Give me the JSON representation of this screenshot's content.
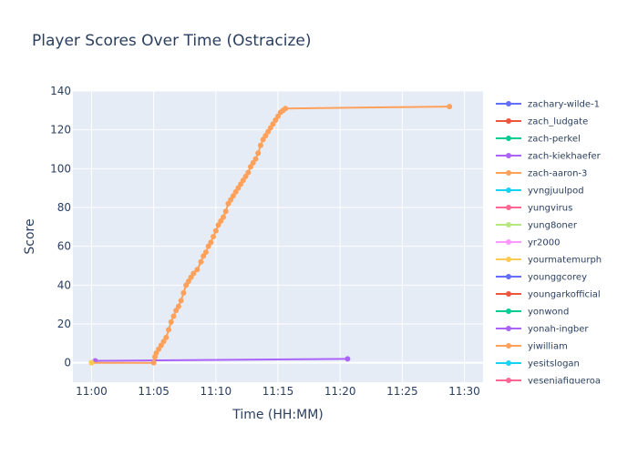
{
  "chart_data": {
    "type": "line",
    "title": "Player Scores Over Time (Ostracize)",
    "xlabel": "Time (HH:MM)",
    "ylabel": "Score",
    "x_unit": "minutes after 11:00",
    "xlim": [
      -1.5,
      31.5
    ],
    "ylim": [
      -10,
      140
    ],
    "x_ticks": [
      {
        "value": 0,
        "label": "11:00"
      },
      {
        "value": 5,
        "label": "11:05"
      },
      {
        "value": 10,
        "label": "11:10"
      },
      {
        "value": 15,
        "label": "11:15"
      },
      {
        "value": 20,
        "label": "11:20"
      },
      {
        "value": 25,
        "label": "11:25"
      },
      {
        "value": 30,
        "label": "11:30"
      }
    ],
    "y_ticks": [
      0,
      20,
      40,
      60,
      80,
      100,
      120,
      140
    ],
    "grid": true,
    "legend_position": "right",
    "series": [
      {
        "name": "zachary-wilde-1",
        "color": "#636efa",
        "x": [],
        "y": []
      },
      {
        "name": "zach_ludgate",
        "color": "#EF553B",
        "x": [],
        "y": []
      },
      {
        "name": "zach-perkel",
        "color": "#00cc96",
        "x": [],
        "y": []
      },
      {
        "name": "zach-kiekhaefer",
        "color": "#ab63fa",
        "x": [
          0.3,
          20.6
        ],
        "y": [
          1,
          2
        ]
      },
      {
        "name": "zach-aaron-3",
        "color": "#FFA15A",
        "x": [
          0.0,
          5.0,
          5.1,
          5.2,
          5.4,
          5.6,
          5.8,
          6.0,
          6.2,
          6.4,
          6.6,
          6.8,
          7.0,
          7.2,
          7.4,
          7.6,
          7.8,
          8.0,
          8.2,
          8.5,
          8.8,
          9.0,
          9.2,
          9.4,
          9.6,
          9.8,
          10.0,
          10.2,
          10.4,
          10.6,
          10.8,
          11.0,
          11.2,
          11.4,
          11.6,
          11.8,
          12.0,
          12.2,
          12.4,
          12.6,
          12.8,
          13.0,
          13.2,
          13.4,
          13.6,
          13.8,
          14.0,
          14.2,
          14.4,
          14.6,
          14.8,
          15.0,
          15.2,
          15.4,
          15.6,
          28.8
        ],
        "y": [
          0,
          0,
          3,
          5,
          7,
          9,
          11,
          13,
          17,
          21,
          24,
          27,
          29,
          32,
          36,
          40,
          42,
          44,
          46,
          48,
          52,
          55,
          57,
          60,
          62,
          65,
          68,
          71,
          73,
          75,
          78,
          82,
          84,
          86,
          88,
          90,
          92,
          94,
          96,
          98,
          101,
          103,
          105,
          108,
          112,
          115,
          117,
          119,
          121,
          123,
          125,
          127,
          129,
          130,
          131,
          132
        ]
      },
      {
        "name": "yvngjuulpod",
        "color": "#19d3f3",
        "x": [],
        "y": []
      },
      {
        "name": "yungvirus",
        "color": "#FF6692",
        "x": [],
        "y": []
      },
      {
        "name": "yung8oner",
        "color": "#B6E880",
        "x": [],
        "y": []
      },
      {
        "name": "yr2000",
        "color": "#FF97FF",
        "x": [],
        "y": []
      },
      {
        "name": "yourmatemurph",
        "color": "#FECB52",
        "x": [
          0.0
        ],
        "y": [
          0
        ]
      },
      {
        "name": "younggcorey",
        "color": "#636efa",
        "x": [],
        "y": []
      },
      {
        "name": "youngarkofficial",
        "color": "#EF553B",
        "x": [],
        "y": []
      },
      {
        "name": "yonwond",
        "color": "#00cc96",
        "x": [],
        "y": []
      },
      {
        "name": "yonah-ingber",
        "color": "#ab63fa",
        "x": [],
        "y": []
      },
      {
        "name": "yiwilliam",
        "color": "#FFA15A",
        "x": [],
        "y": []
      },
      {
        "name": "yesitslogan",
        "color": "#19d3f3",
        "x": [],
        "y": []
      },
      {
        "name": "yesenjafigueroa",
        "color": "#FF6692",
        "x": [],
        "y": []
      }
    ]
  }
}
